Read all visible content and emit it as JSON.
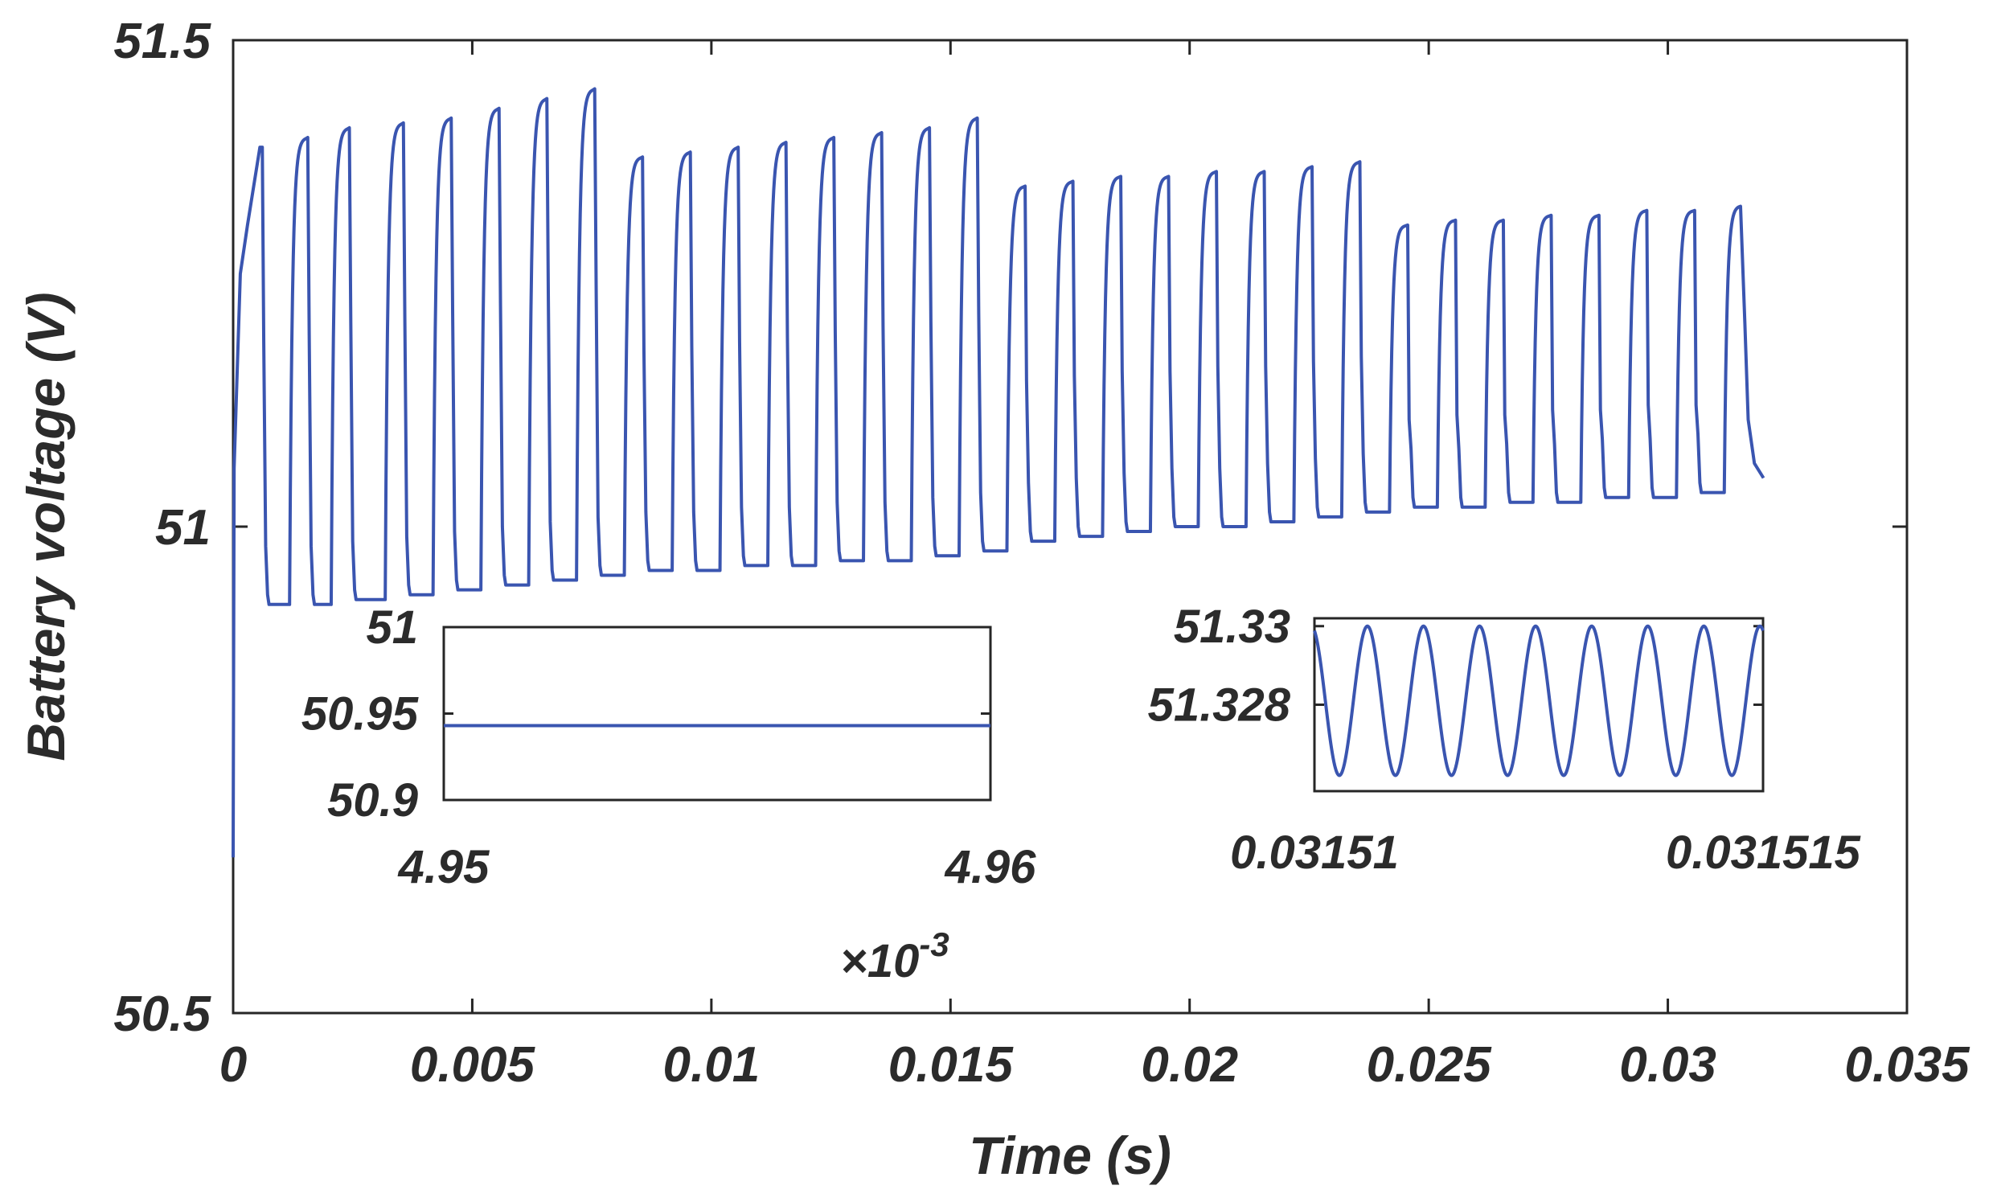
{
  "chart_data": [
    {
      "type": "line",
      "role": "main",
      "title": "",
      "xlabel": "Time (s)",
      "ylabel": "Battery voltage (V)",
      "xlim": [
        0,
        0.035
      ],
      "ylim": [
        50.5,
        51.5
      ],
      "xticks": [
        0,
        0.005,
        0.01,
        0.015,
        0.02,
        0.025,
        0.03,
        0.035
      ],
      "xtick_labels": [
        "0",
        "0.005",
        "0.01",
        "0.015",
        "0.02",
        "0.025",
        "0.03",
        "0.035"
      ],
      "yticks": [
        50.5,
        51,
        51.5
      ],
      "ytick_labels": [
        "50.5",
        "51",
        "51.5"
      ],
      "grid": false,
      "series_color": "#3a55b0",
      "start": {
        "t": 0,
        "v": 50.66
      },
      "first_rise": {
        "t": 0.0003,
        "v": 51.31
      },
      "end_t": 0.032,
      "end_v": 51.05,
      "cycle_on_duration_s": 0.00038,
      "cycles": [
        {
          "t_end": 0.00061,
          "min": 50.92,
          "max": 51.39
        },
        {
          "t_end": 0.00156,
          "min": 50.92,
          "max": 51.4
        },
        {
          "t_end": 0.00243,
          "min": 50.925,
          "max": 51.41
        },
        {
          "t_end": 0.00356,
          "min": 50.93,
          "max": 51.415
        },
        {
          "t_end": 0.00456,
          "min": 50.935,
          "max": 51.42
        },
        {
          "t_end": 0.00556,
          "min": 50.94,
          "max": 51.43
        },
        {
          "t_end": 0.00656,
          "min": 50.945,
          "max": 51.44
        },
        {
          "t_end": 0.00756,
          "min": 50.95,
          "max": 51.45
        },
        {
          "t_end": 0.00856,
          "min": 50.955,
          "max": 51.38
        },
        {
          "t_end": 0.00956,
          "min": 50.955,
          "max": 51.385
        },
        {
          "t_end": 0.01056,
          "min": 50.96,
          "max": 51.39
        },
        {
          "t_end": 0.01156,
          "min": 50.96,
          "max": 51.395
        },
        {
          "t_end": 0.01256,
          "min": 50.965,
          "max": 51.4
        },
        {
          "t_end": 0.01356,
          "min": 50.965,
          "max": 51.405
        },
        {
          "t_end": 0.01456,
          "min": 50.97,
          "max": 51.41
        },
        {
          "t_end": 0.01556,
          "min": 50.975,
          "max": 51.42
        },
        {
          "t_end": 0.01656,
          "min": 50.985,
          "max": 51.35
        },
        {
          "t_end": 0.01756,
          "min": 50.99,
          "max": 51.355
        },
        {
          "t_end": 0.01856,
          "min": 50.995,
          "max": 51.36
        },
        {
          "t_end": 0.01956,
          "min": 51.0,
          "max": 51.36
        },
        {
          "t_end": 0.02056,
          "min": 51.0,
          "max": 51.365
        },
        {
          "t_end": 0.02156,
          "min": 51.005,
          "max": 51.365
        },
        {
          "t_end": 0.02256,
          "min": 51.01,
          "max": 51.37
        },
        {
          "t_end": 0.02356,
          "min": 51.015,
          "max": 51.375
        },
        {
          "t_end": 0.02456,
          "min": 51.02,
          "max": 51.31
        },
        {
          "t_end": 0.02556,
          "min": 51.02,
          "max": 51.315
        },
        {
          "t_end": 0.02656,
          "min": 51.025,
          "max": 51.315
        },
        {
          "t_end": 0.02756,
          "min": 51.025,
          "max": 51.32
        },
        {
          "t_end": 0.02856,
          "min": 51.03,
          "max": 51.32
        },
        {
          "t_end": 0.02956,
          "min": 51.03,
          "max": 51.325
        },
        {
          "t_end": 0.03056,
          "min": 51.035,
          "max": 51.325
        },
        {
          "t_end": 0.03156,
          "min": 51.04,
          "max": 51.33
        }
      ]
    },
    {
      "type": "line",
      "role": "inset-left",
      "xlim": [
        4.95,
        4.96
      ],
      "xticks": [
        4.95,
        4.96
      ],
      "xtick_labels": [
        "4.95",
        "4.96"
      ],
      "x_multiplier_base": "×10",
      "x_multiplier_exp": "-3",
      "ylim": [
        50.9,
        51.0
      ],
      "yticks": [
        50.9,
        50.95,
        51
      ],
      "ytick_labels": [
        "50.9",
        "50.95",
        "51"
      ],
      "x": [
        4.95,
        4.96
      ],
      "values": [
        50.943,
        50.943
      ]
    },
    {
      "type": "line",
      "role": "inset-right",
      "xlim": [
        0.03151,
        0.031515
      ],
      "xticks": [
        0.03151,
        0.031515
      ],
      "xtick_labels": [
        "0.03151",
        "0.031515"
      ],
      "ylim": [
        51.3258,
        51.3302
      ],
      "yticks": [
        51.328,
        51.33
      ],
      "ytick_labels": [
        "51.328",
        "51.33"
      ],
      "waveform": "sine",
      "cycles_shown": 8,
      "peak": 51.33,
      "trough": 51.3262
    }
  ]
}
